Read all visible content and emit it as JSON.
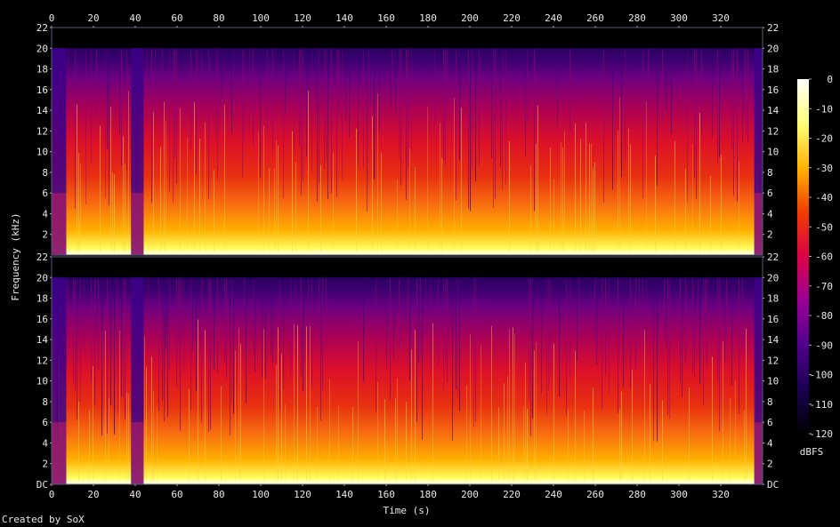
{
  "chart_data": {
    "type": "heatmap",
    "title": "",
    "xlabel": "Time (s)",
    "ylabel": "Frequency (kHz)",
    "xlim": [
      0,
      340
    ],
    "x_ticks": [
      0,
      20,
      40,
      60,
      80,
      100,
      120,
      140,
      160,
      180,
      200,
      220,
      240,
      260,
      280,
      300,
      320
    ],
    "channels": [
      {
        "name": "",
        "ylim": [
          0,
          22
        ],
        "y_tick_labels": [
          "22",
          "20",
          "18",
          "16",
          "14",
          "12",
          "10",
          "8",
          "6",
          "4",
          "2"
        ]
      },
      {
        "name": "",
        "ylim": [
          0,
          22
        ],
        "y_tick_labels": [
          "DC",
          "2",
          "4",
          "6",
          "8",
          "10",
          "12",
          "14",
          "16",
          "18",
          "20",
          "22"
        ]
      }
    ],
    "signal_cutoff_khz": 20,
    "quiet_segments_s": [
      [
        0,
        7
      ],
      [
        38,
        44
      ],
      [
        336,
        340
      ]
    ],
    "colorbar": {
      "label": "dBFS",
      "range": [
        -120,
        0
      ],
      "ticks": [
        0,
        -10,
        -20,
        -30,
        -40,
        -50,
        -60,
        -70,
        -80,
        -90,
        -100,
        -110,
        -120
      ],
      "tick_labels": [
        "0",
        "-10",
        "-20",
        "-30",
        "-40",
        "-50",
        "-60",
        "-70",
        "-80",
        "-90",
        "-100",
        "-110",
        "-120"
      ],
      "colors": [
        "#000000",
        "#1a0050",
        "#50008c",
        "#9a0096",
        "#dc0046",
        "#f03c00",
        "#ffb400",
        "#ffff78",
        "#ffffff"
      ]
    }
  },
  "footer": {
    "credit": "Created by SoX"
  }
}
